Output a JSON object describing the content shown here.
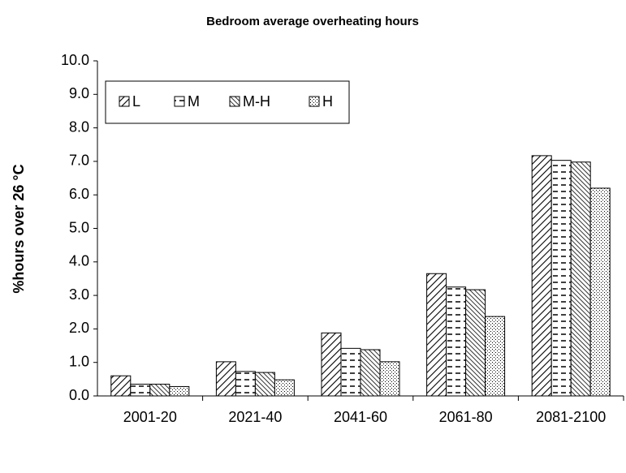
{
  "chart_data": {
    "type": "bar",
    "title": "Bedroom average overheating hours",
    "y_label": "%hours over 26 °C",
    "categories": [
      "2001-20",
      "2021-40",
      "2041-60",
      "2061-80",
      "2081-2100"
    ],
    "series": [
      {
        "name": "L",
        "color": "#000000",
        "pattern": "diagonal",
        "values": [
          0.6,
          1.02,
          1.88,
          3.65,
          7.17
        ]
      },
      {
        "name": "M",
        "color": "#000000",
        "pattern": "dashes",
        "values": [
          0.35,
          0.73,
          1.42,
          3.25,
          7.03
        ]
      },
      {
        "name": "M-H",
        "color": "#000000",
        "pattern": "dense-diagonal",
        "values": [
          0.35,
          0.7,
          1.38,
          3.17,
          6.98
        ]
      },
      {
        "name": "H",
        "color": "#000000",
        "pattern": "dots",
        "values": [
          0.28,
          0.48,
          1.02,
          2.37,
          6.2
        ]
      }
    ],
    "ylim": [
      0,
      10
    ],
    "yticks": [
      {
        "value": 0,
        "label": "0.0"
      },
      {
        "value": 1,
        "label": "1.0"
      },
      {
        "value": 2,
        "label": "2.0"
      },
      {
        "value": 3,
        "label": "3.0"
      },
      {
        "value": 4,
        "label": "4.0"
      },
      {
        "value": 5,
        "label": "5.0"
      },
      {
        "value": 6,
        "label": "6.0"
      },
      {
        "value": 7,
        "label": "7.0"
      },
      {
        "value": 8,
        "label": "8.0"
      },
      {
        "value": 9,
        "label": "9.0"
      },
      {
        "value": 10,
        "label": "10.0"
      }
    ],
    "grid": false,
    "legend": "top-left"
  }
}
